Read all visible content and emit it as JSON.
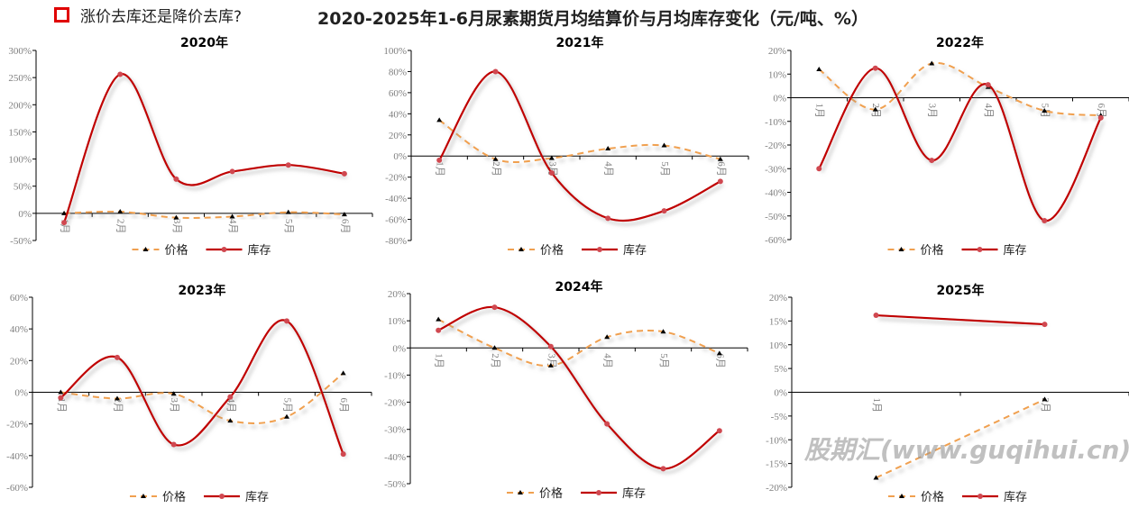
{
  "header": {
    "question": "涨价去库还是降价去库?",
    "title": "2020-2025年1-6月尿素期货月均结算价与月均库存变化（元/吨、%）"
  },
  "watermark": "股期汇(www.guqihui.cn)",
  "colors": {
    "price": "#F0A050",
    "inventory": "#C00000",
    "inventory_marker": "#D04850"
  },
  "legend": {
    "price": "价格",
    "inventory": "库存"
  },
  "chart_data": [
    {
      "type": "line",
      "title": "2020年",
      "categories": [
        "1月",
        "2月",
        "3月",
        "4月",
        "5月",
        "6月"
      ],
      "ylim": [
        -50,
        300
      ],
      "yticks": [
        -50,
        0,
        50,
        100,
        150,
        200,
        250,
        300
      ],
      "smooth": true,
      "series": [
        {
          "name": "价格",
          "values": [
            0,
            3,
            -8,
            -6,
            2,
            -2
          ]
        },
        {
          "name": "库存",
          "values": [
            -17,
            256,
            63,
            77,
            89,
            73
          ]
        }
      ]
    },
    {
      "type": "line",
      "title": "2021年",
      "categories": [
        "1月",
        "2月",
        "3月",
        "4月",
        "5月",
        "6月"
      ],
      "ylim": [
        -80,
        100
      ],
      "yticks": [
        -80,
        -60,
        -40,
        -20,
        0,
        20,
        40,
        60,
        80,
        100
      ],
      "smooth": true,
      "series": [
        {
          "name": "价格",
          "values": [
            34,
            -3,
            -2,
            7,
            10,
            -3
          ]
        },
        {
          "name": "库存",
          "values": [
            -4,
            80,
            -16,
            -59,
            -52,
            -24
          ]
        }
      ]
    },
    {
      "type": "line",
      "title": "2022年",
      "categories": [
        "1月",
        "2月",
        "3月",
        "4月",
        "5月",
        "6月"
      ],
      "ylim": [
        -60,
        20
      ],
      "yticks": [
        -60,
        -50,
        -40,
        -30,
        -20,
        -10,
        0,
        10,
        20
      ],
      "smooth": true,
      "series": [
        {
          "name": "价格",
          "values": [
            12,
            -5,
            14.5,
            4.5,
            -5.5,
            -7.5
          ]
        },
        {
          "name": "库存",
          "values": [
            -30,
            12.5,
            -26.5,
            5.5,
            -52,
            -8.5
          ]
        }
      ]
    },
    {
      "type": "line",
      "title": "2023年",
      "categories": [
        "1月",
        "2月",
        "3月",
        "4月",
        "5月",
        "6月"
      ],
      "ylim": [
        -60,
        60
      ],
      "yticks": [
        -60,
        -40,
        -20,
        0,
        20,
        40,
        60
      ],
      "smooth": true,
      "series": [
        {
          "name": "价格",
          "values": [
            0,
            -4,
            -1,
            -18,
            -15.5,
            12
          ]
        },
        {
          "name": "库存",
          "values": [
            -3.5,
            22,
            -33,
            -3,
            45,
            -39
          ]
        }
      ]
    },
    {
      "type": "line",
      "title": "2024年",
      "categories": [
        "1月",
        "2月",
        "3月",
        "4月",
        "5月",
        "6月"
      ],
      "ylim": [
        -50,
        20
      ],
      "yticks": [
        -50,
        -40,
        -30,
        -20,
        -10,
        0,
        10,
        20
      ],
      "smooth": true,
      "series": [
        {
          "name": "价格",
          "values": [
            10.5,
            0,
            -6.5,
            4,
            6,
            -2
          ]
        },
        {
          "name": "库存",
          "values": [
            6.5,
            15,
            0.5,
            -28,
            -44.5,
            -30.5
          ]
        }
      ]
    },
    {
      "type": "line",
      "title": "2025年",
      "categories": [
        "1月",
        "2月"
      ],
      "ylim": [
        -20,
        20
      ],
      "yticks": [
        -20,
        -15,
        -10,
        -5,
        0,
        5,
        10,
        15,
        20
      ],
      "smooth": true,
      "series": [
        {
          "name": "价格",
          "values": [
            -18,
            -1.5
          ]
        },
        {
          "name": "库存",
          "values": [
            16.2,
            14.3
          ]
        }
      ]
    }
  ]
}
